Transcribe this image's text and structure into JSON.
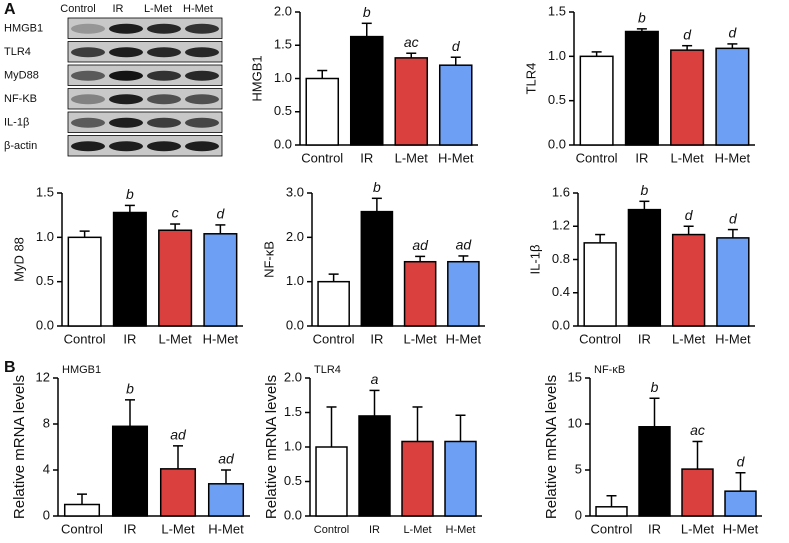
{
  "panel_labels": [
    "A",
    "B"
  ],
  "blot": {
    "columns": [
      "Control",
      "IR",
      "L-Met",
      "H-Met"
    ],
    "rows": [
      "HMGB1",
      "TLR4",
      "MyD88",
      "NF-KB",
      "IL-1β",
      "β-actin"
    ]
  },
  "chart_data": [
    {
      "type": "bar",
      "ylabel": "HMGB1",
      "categories": [
        "Control",
        "IR",
        "L-Met",
        "H-Met"
      ],
      "values": [
        1.0,
        1.63,
        1.31,
        1.2
      ],
      "errors": [
        0.12,
        0.2,
        0.07,
        0.12
      ],
      "annotations": [
        null,
        "b",
        "ac",
        "d"
      ],
      "colors": [
        "#ffffff",
        "#000000",
        "#d9403e",
        "#6da0f5"
      ],
      "ylim": [
        0,
        2
      ],
      "yticks": [
        {
          "value": 0,
          "label": "0.0"
        },
        {
          "value": 0.5,
          "label": "0.5"
        },
        {
          "value": 1,
          "label": "1.0"
        },
        {
          "value": 1.5,
          "label": "1.5"
        },
        {
          "value": 2,
          "label": "2.0"
        }
      ]
    },
    {
      "type": "bar",
      "ylabel": "TLR4",
      "categories": [
        "Control",
        "IR",
        "L-Met",
        "H-Met"
      ],
      "values": [
        1.0,
        1.28,
        1.07,
        1.09
      ],
      "errors": [
        0.05,
        0.03,
        0.05,
        0.05
      ],
      "annotations": [
        null,
        "b",
        "d",
        "d"
      ],
      "colors": [
        "#ffffff",
        "#000000",
        "#d9403e",
        "#6da0f5"
      ],
      "ylim": [
        0,
        1.5
      ],
      "yticks": [
        {
          "value": 0,
          "label": "0.0"
        },
        {
          "value": 0.5,
          "label": "0.5"
        },
        {
          "value": 1,
          "label": "1.0"
        },
        {
          "value": 1.5,
          "label": "1.5"
        }
      ]
    },
    {
      "type": "bar",
      "ylabel": "MyD 88",
      "categories": [
        "Control",
        "IR",
        "L-Met",
        "H-Met"
      ],
      "values": [
        1.0,
        1.28,
        1.08,
        1.04
      ],
      "errors": [
        0.07,
        0.08,
        0.07,
        0.1
      ],
      "annotations": [
        null,
        "b",
        "c",
        "d"
      ],
      "colors": [
        "#ffffff",
        "#000000",
        "#d9403e",
        "#6da0f5"
      ],
      "ylim": [
        0,
        1.5
      ],
      "yticks": [
        {
          "value": 0,
          "label": "0.0"
        },
        {
          "value": 0.5,
          "label": "0.5"
        },
        {
          "value": 1,
          "label": "1.0"
        },
        {
          "value": 1.5,
          "label": "1.5"
        }
      ]
    },
    {
      "type": "bar",
      "ylabel": "NF-κB",
      "categories": [
        "Control",
        "IR",
        "L-Met",
        "H-Met"
      ],
      "values": [
        1.0,
        2.58,
        1.45,
        1.45
      ],
      "errors": [
        0.17,
        0.3,
        0.12,
        0.13
      ],
      "annotations": [
        null,
        "b",
        "ad",
        "ad"
      ],
      "colors": [
        "#ffffff",
        "#000000",
        "#d9403e",
        "#6da0f5"
      ],
      "ylim": [
        0,
        3
      ],
      "yticks": [
        {
          "value": 0,
          "label": "0.0"
        },
        {
          "value": 1,
          "label": "1.0"
        },
        {
          "value": 2,
          "label": "2.0"
        },
        {
          "value": 3,
          "label": "3.0"
        }
      ]
    },
    {
      "type": "bar",
      "ylabel": "IL-1β",
      "categories": [
        "Control",
        "IR",
        "L-Met",
        "H-Met"
      ],
      "values": [
        1.0,
        1.4,
        1.1,
        1.06
      ],
      "errors": [
        0.1,
        0.1,
        0.1,
        0.1
      ],
      "annotations": [
        null,
        "b",
        "d",
        "d"
      ],
      "colors": [
        "#ffffff",
        "#000000",
        "#d9403e",
        "#6da0f5"
      ],
      "ylim": [
        0,
        1.6
      ],
      "yticks": [
        {
          "value": 0,
          "label": "0.0"
        },
        {
          "value": 0.4,
          "label": "0.4"
        },
        {
          "value": 0.8,
          "label": "0.8"
        },
        {
          "value": 1.2,
          "label": "1.2"
        },
        {
          "value": 1.6,
          "label": "1.6"
        }
      ]
    },
    {
      "type": "bar",
      "title": "HMGB1",
      "ylabel": "Relative mRNA levels",
      "categories": [
        "Control",
        "IR",
        "L-Met",
        "H-Met"
      ],
      "values": [
        1.0,
        7.8,
        4.1,
        2.8
      ],
      "errors": [
        0.9,
        2.3,
        2.0,
        1.2
      ],
      "annotations": [
        null,
        "b",
        "ad",
        "ad"
      ],
      "colors": [
        "#ffffff",
        "#000000",
        "#d9403e",
        "#6da0f5"
      ],
      "ylim": [
        0,
        12
      ],
      "yticks": [
        0,
        4,
        8,
        12
      ]
    },
    {
      "type": "bar",
      "title": "TLR4",
      "ylabel": "Relative mRNA levels",
      "categories": [
        "Control",
        "IR",
        "L-Met",
        "H-Met"
      ],
      "values": [
        1.0,
        1.45,
        1.08,
        1.08
      ],
      "errors": [
        0.58,
        0.37,
        0.5,
        0.38
      ],
      "annotations": [
        null,
        "a",
        null,
        null
      ],
      "colors": [
        "#ffffff",
        "#000000",
        "#d9403e",
        "#6da0f5"
      ],
      "ylim": [
        0,
        2
      ],
      "yticks": [
        {
          "value": 0,
          "label": "0.0"
        },
        {
          "value": 0.5,
          "label": "0.5"
        },
        {
          "value": 1,
          "label": "1.0"
        },
        {
          "value": 1.5,
          "label": "1.5"
        },
        {
          "value": 2,
          "label": "2.0"
        }
      ]
    },
    {
      "type": "bar",
      "title": "NF-κB",
      "ylabel": "Relative mRNA levels",
      "categories": [
        "Control",
        "IR",
        "L-Met",
        "H-Met"
      ],
      "values": [
        1.0,
        9.7,
        5.1,
        2.7
      ],
      "errors": [
        1.2,
        3.1,
        3.0,
        2.0
      ],
      "annotations": [
        null,
        "b",
        "ac",
        "d"
      ],
      "colors": [
        "#ffffff",
        "#000000",
        "#d9403e",
        "#6da0f5"
      ],
      "ylim": [
        0,
        15
      ],
      "yticks": [
        0,
        5,
        10,
        15
      ]
    }
  ]
}
